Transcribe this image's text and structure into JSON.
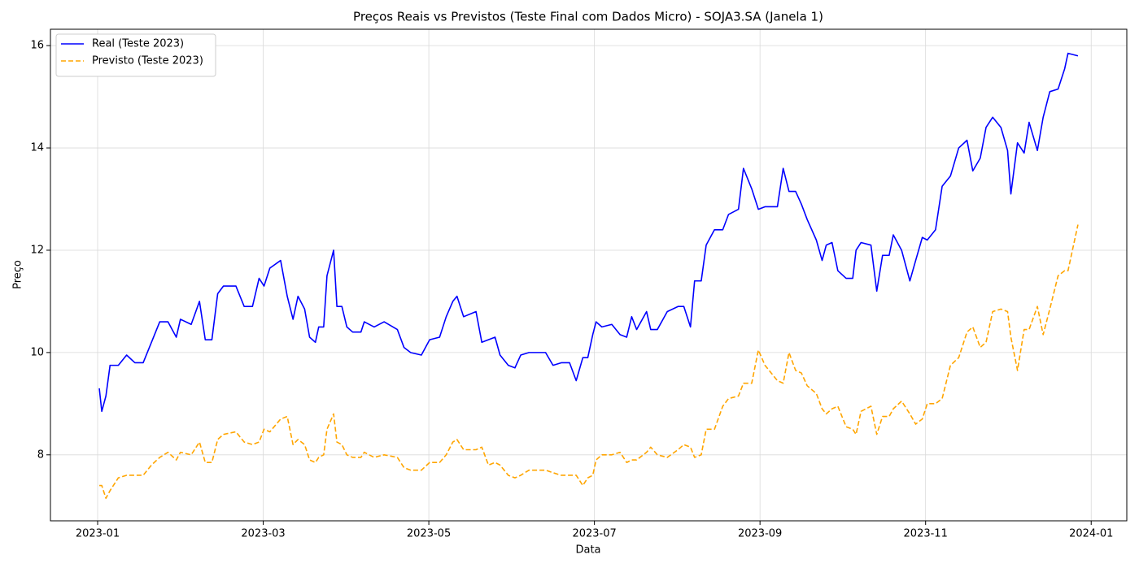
{
  "chart_data": {
    "type": "line",
    "title": "Preços Reais vs Previstos (Teste Final com Dados Micro) - SOJA3.SA (Janela 1)",
    "xlabel": "Data",
    "ylabel": "Preço",
    "x": [
      0.02,
      0.05,
      0.1,
      0.15,
      0.25,
      0.35,
      0.45,
      0.55,
      0.65,
      0.75,
      0.85,
      0.95,
      1.0,
      1.13,
      1.23,
      1.3,
      1.38,
      1.45,
      1.52,
      1.67,
      1.77,
      1.87,
      1.95,
      2.01,
      2.08,
      2.21,
      2.29,
      2.36,
      2.42,
      2.5,
      2.56,
      2.63,
      2.67,
      2.73,
      2.77,
      2.85,
      2.89,
      2.95,
      3.01,
      3.08,
      3.18,
      3.22,
      3.34,
      3.46,
      3.62,
      3.7,
      3.78,
      3.91,
      4.01,
      4.13,
      4.21,
      4.29,
      4.34,
      4.42,
      4.57,
      4.64,
      4.72,
      4.8,
      4.86,
      4.96,
      5.04,
      5.11,
      5.21,
      5.31,
      5.41,
      5.5,
      5.6,
      5.7,
      5.78,
      5.86,
      5.92,
      5.98,
      6.02,
      6.09,
      6.21,
      6.31,
      6.39,
      6.45,
      6.51,
      6.63,
      6.68,
      6.76,
      6.88,
      7.01,
      7.08,
      7.16,
      7.21,
      7.29,
      7.35,
      7.45,
      7.55,
      7.62,
      7.74,
      7.8,
      7.9,
      7.98,
      8.06,
      8.21,
      8.28,
      8.35,
      8.43,
      8.5,
      8.57,
      8.68,
      8.75,
      8.8,
      8.87,
      8.94,
      9.04,
      9.12,
      9.16,
      9.22,
      9.34,
      9.41,
      9.48,
      9.56,
      9.61,
      9.71,
      9.81,
      9.88,
      9.96,
      10.02,
      10.12,
      10.2,
      10.3,
      10.4,
      10.5,
      10.57,
      10.66,
      10.73,
      10.81,
      10.91,
      10.99,
      11.03,
      11.11,
      11.19,
      11.25,
      11.35,
      11.42,
      11.5,
      11.6,
      11.68,
      11.72,
      11.84
    ],
    "series": [
      {
        "name": "Real (Teste 2023)",
        "color": "#0000ff",
        "dash": false,
        "values": [
          9.3,
          8.85,
          9.15,
          9.75,
          9.75,
          9.95,
          9.8,
          9.8,
          10.2,
          10.6,
          10.6,
          10.3,
          10.65,
          10.55,
          11.0,
          10.25,
          10.25,
          11.15,
          11.3,
          11.3,
          10.9,
          10.9,
          11.45,
          11.3,
          11.65,
          11.8,
          11.1,
          10.65,
          11.1,
          10.85,
          10.3,
          10.2,
          10.5,
          10.5,
          11.5,
          12.0,
          10.9,
          10.9,
          10.5,
          10.4,
          10.4,
          10.6,
          10.5,
          10.6,
          10.45,
          10.1,
          10.0,
          9.95,
          10.25,
          10.3,
          10.7,
          11.0,
          11.1,
          10.7,
          10.8,
          10.2,
          10.25,
          10.3,
          9.95,
          9.75,
          9.7,
          9.95,
          10.0,
          10.0,
          10.0,
          9.75,
          9.8,
          9.8,
          9.45,
          9.9,
          9.9,
          10.35,
          10.6,
          10.5,
          10.55,
          10.35,
          10.3,
          10.7,
          10.45,
          10.8,
          10.45,
          10.45,
          10.8,
          10.9,
          10.9,
          10.5,
          11.4,
          11.4,
          12.1,
          12.4,
          12.4,
          12.7,
          12.8,
          13.6,
          13.2,
          12.8,
          12.85,
          12.85,
          13.6,
          13.15,
          13.15,
          12.9,
          12.6,
          12.2,
          11.8,
          12.1,
          12.15,
          11.6,
          11.45,
          11.45,
          12.0,
          12.15,
          12.1,
          11.2,
          11.9,
          11.9,
          12.3,
          12.0,
          11.4,
          11.8,
          12.25,
          12.2,
          12.4,
          13.25,
          13.45,
          14.0,
          14.15,
          13.55,
          13.8,
          14.4,
          14.6,
          14.4,
          13.95,
          13.1,
          14.1,
          13.9,
          14.5,
          13.95,
          14.6,
          15.1,
          15.15,
          15.55,
          15.85,
          15.8
        ]
      },
      {
        "name": "Previsto (Teste 2023)",
        "color": "#ffa500",
        "dash": true,
        "values": [
          7.4,
          7.4,
          7.15,
          7.3,
          7.55,
          7.6,
          7.6,
          7.6,
          7.8,
          7.95,
          8.05,
          7.9,
          8.05,
          8.0,
          8.25,
          7.85,
          7.85,
          8.3,
          8.4,
          8.45,
          8.25,
          8.2,
          8.25,
          8.5,
          8.45,
          8.7,
          8.75,
          8.2,
          8.3,
          8.2,
          7.9,
          7.85,
          7.95,
          8.0,
          8.5,
          8.8,
          8.25,
          8.2,
          8.0,
          7.95,
          7.95,
          8.05,
          7.95,
          8.0,
          7.95,
          7.75,
          7.7,
          7.7,
          7.85,
          7.85,
          8.0,
          8.25,
          8.3,
          8.1,
          8.1,
          8.15,
          7.8,
          7.85,
          7.8,
          7.6,
          7.55,
          7.6,
          7.7,
          7.7,
          7.7,
          7.65,
          7.6,
          7.6,
          7.6,
          7.4,
          7.55,
          7.6,
          7.9,
          8.0,
          8.0,
          8.05,
          7.85,
          7.9,
          7.9,
          8.05,
          8.15,
          8.0,
          7.95,
          8.1,
          8.2,
          8.15,
          7.95,
          8.0,
          8.5,
          8.5,
          8.95,
          9.1,
          9.15,
          9.4,
          9.4,
          10.05,
          9.75,
          9.45,
          9.4,
          10.0,
          9.65,
          9.6,
          9.35,
          9.2,
          8.9,
          8.8,
          8.9,
          8.95,
          8.55,
          8.5,
          8.4,
          8.85,
          8.95,
          8.4,
          8.75,
          8.75,
          8.9,
          9.05,
          8.8,
          8.6,
          8.7,
          9.0,
          9.0,
          9.1,
          9.75,
          9.9,
          10.4,
          10.5,
          10.1,
          10.2,
          10.8,
          10.85,
          10.8,
          10.3,
          9.65,
          10.45,
          10.45,
          10.9,
          10.35,
          10.85,
          11.5,
          11.6,
          11.6,
          12.5
        ]
      }
    ],
    "xlim": [
      -0.57,
      12.43
    ],
    "xticks": [
      {
        "value": 0,
        "label": "2023-01"
      },
      {
        "value": 2,
        "label": "2023-03"
      },
      {
        "value": 4,
        "label": "2023-05"
      },
      {
        "value": 6,
        "label": "2023-07"
      },
      {
        "value": 8,
        "label": "2023-09"
      },
      {
        "value": 10,
        "label": "2023-11"
      },
      {
        "value": 12,
        "label": "2024-01"
      }
    ],
    "ylim": [
      6.71,
      16.32
    ],
    "yticks": [
      8,
      10,
      12,
      14,
      16
    ],
    "grid": true,
    "legend": "upper left"
  }
}
